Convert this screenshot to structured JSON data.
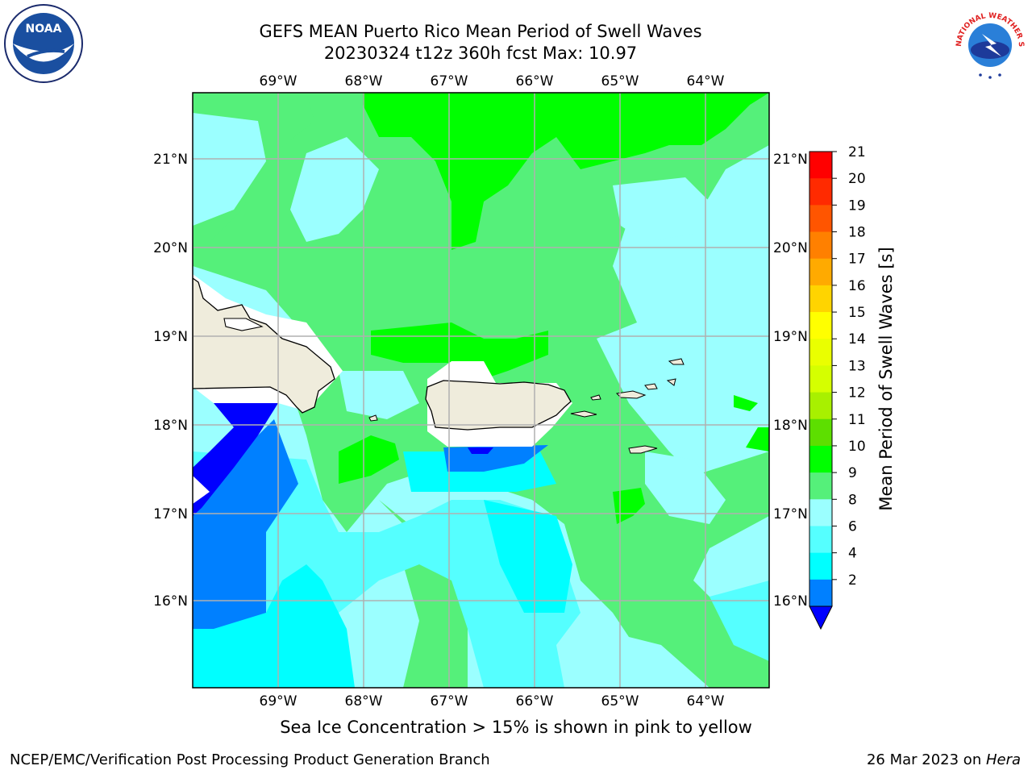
{
  "title": {
    "line1": "GEFS MEAN Puerto Rico Mean Period of Swell Waves",
    "line2": "20230324 t12z 360h fcst   Max: 10.97"
  },
  "map": {
    "lon_labels": [
      "69°W",
      "68°W",
      "67°W",
      "66°W",
      "65°W",
      "64°W"
    ],
    "lat_labels": [
      "21°N",
      "20°N",
      "19°N",
      "18°N",
      "17°N",
      "16°N"
    ],
    "land_color": "#efecdc",
    "coast_color": "#000000",
    "grid_color": "#b0b0b0"
  },
  "colorbar": {
    "label": "Mean Period of Swell Waves [s]",
    "ticks": [
      "21",
      "20",
      "19",
      "18",
      "17",
      "16",
      "15",
      "14",
      "13",
      "12",
      "11",
      "10",
      "9",
      "8",
      "6",
      "4",
      "2"
    ],
    "colors": [
      "#ff0000",
      "#ff2a00",
      "#ff5500",
      "#ff8000",
      "#ffaa00",
      "#ffd400",
      "#ffff00",
      "#eaff00",
      "#d5ff00",
      "#a8f000",
      "#5ddf00",
      "#00ff00",
      "#55f07a",
      "#9bffff",
      "#55ffff",
      "#00ffff",
      "#0080ff"
    ],
    "extend_color": "#0000ff"
  },
  "logos": {
    "noaa_text": "NOAA",
    "nws_text": "NATIONAL WEATHER SERVICE"
  },
  "caption": "Sea Ice Concentration > 15% is shown in pink to yellow",
  "footer": {
    "left": "NCEP/EMC/Verification Post Processing Product Generation Branch",
    "right_date": "26 Mar 2023 on ",
    "right_host": "Hera"
  }
}
